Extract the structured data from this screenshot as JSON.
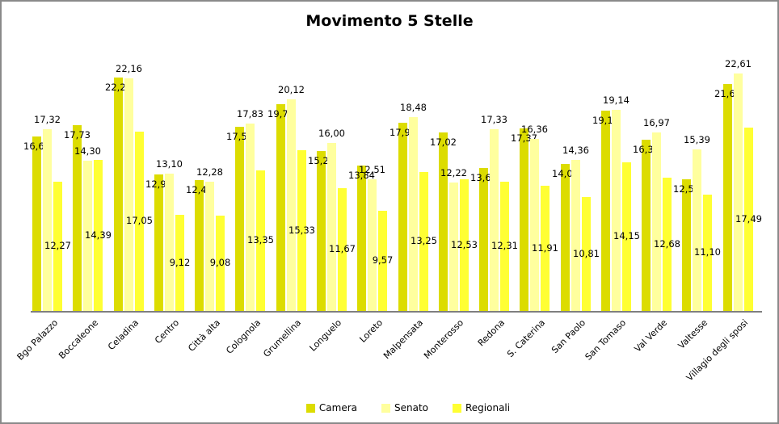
{
  "title": "Movimento 5 Stelle",
  "chart_data": {
    "type": "bar",
    "title": "Movimento 5 Stelle",
    "categories": [
      "Bgo Palazzo",
      "Boccaleone",
      "Celadina",
      "Centro",
      "Città alta",
      "Colognola",
      "Grumellina",
      "Longuelo",
      "Loreto",
      "Malpensata",
      "Monterosso",
      "Redona",
      "S. Caterina",
      "San Paolo",
      "San Tomaso",
      "Val Verde",
      "Valtesse",
      "Villagio degli sposi"
    ],
    "series": [
      {
        "name": "Camera",
        "color": "#DCDC00",
        "label_position": "inside-top",
        "values": [
          16.6,
          17.73,
          22.2,
          12.99,
          12.45,
          17.55,
          19.71,
          15.23,
          13.84,
          17.92,
          17.02,
          13.63,
          17.37,
          14.01,
          19.11,
          16.31,
          12.57,
          21.63
        ]
      },
      {
        "name": "Senato",
        "color": "#FFFF9E",
        "label_position": "outside-top",
        "values": [
          17.32,
          14.3,
          22.16,
          13.1,
          12.28,
          17.83,
          20.12,
          16.0,
          12.51,
          18.48,
          12.22,
          17.33,
          16.36,
          14.36,
          19.14,
          16.97,
          15.39,
          22.61
        ]
      },
      {
        "name": "Regionali",
        "color": "#FFFF33",
        "label_position": "inside-center",
        "values": [
          12.27,
          14.39,
          17.05,
          9.12,
          9.08,
          13.35,
          15.33,
          11.67,
          9.57,
          13.25,
          12.53,
          12.31,
          11.91,
          10.81,
          14.15,
          12.68,
          11.1,
          17.49
        ]
      }
    ],
    "ylim": [
      0,
      25
    ],
    "grid": false,
    "y_axis_visible": false,
    "legend_position": "bottom",
    "value_format": "comma-decimal-2",
    "axis_color": "#7f7f7f",
    "xlabel": "",
    "ylabel": ""
  }
}
